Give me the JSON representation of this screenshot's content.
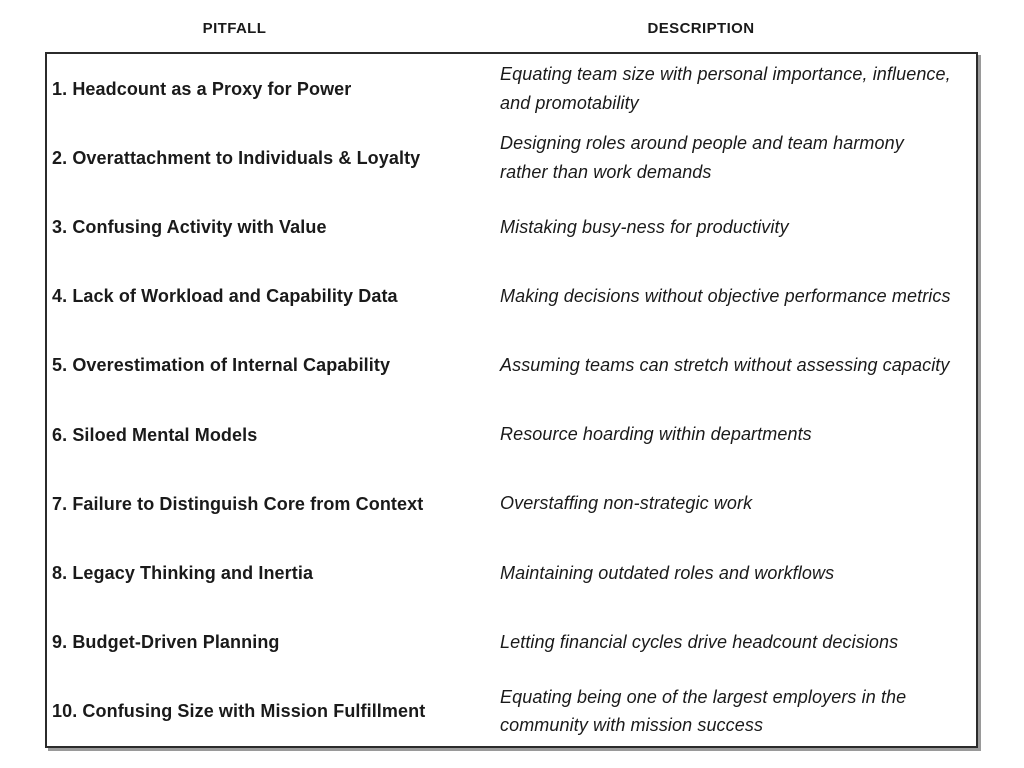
{
  "colors": {
    "background": "#ffffff",
    "text": "#1a1a1a",
    "border": "#2b2b2b",
    "shadow": "#9a9a9a"
  },
  "table": {
    "headers": [
      {
        "label": "PITFALL"
      },
      {
        "label": "DESCRIPTION"
      }
    ],
    "rows": [
      {
        "pitfall": "1. Headcount as a Proxy for Power",
        "description": "Equating team size with personal importance, influence, and promotability"
      },
      {
        "pitfall": "2. Overattachment to Individuals & Loyalty",
        "description": "Designing roles around people and team harmony rather than work demands"
      },
      {
        "pitfall": "3. Confusing Activity with Value",
        "description": "Mistaking busy-ness for productivity"
      },
      {
        "pitfall": "4. Lack of Workload and Capability Data",
        "description": "Making decisions without objective performance metrics"
      },
      {
        "pitfall": "5. Overestimation of Internal Capability",
        "description": "Assuming teams can stretch without assessing capacity"
      },
      {
        "pitfall": "6. Siloed Mental Models",
        "description": "Resource hoarding within departments"
      },
      {
        "pitfall": "7. Failure to Distinguish Core from Context",
        "description": "Overstaffing non-strategic work"
      },
      {
        "pitfall": "8. Legacy Thinking and Inertia",
        "description": "Maintaining outdated roles and workflows"
      },
      {
        "pitfall": "9. Budget-Driven Planning",
        "description": "Letting financial cycles drive headcount decisions"
      },
      {
        "pitfall": "10. Confusing Size with Mission Fulfillment",
        "description": "Equating being one of the largest employers in the community with mission success"
      }
    ]
  }
}
